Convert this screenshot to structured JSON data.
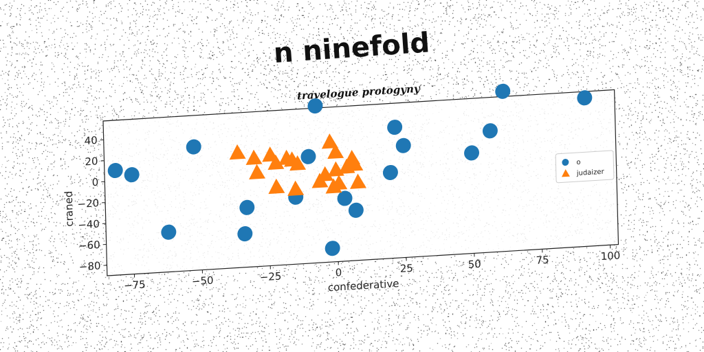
{
  "title": "n ninefold",
  "chart_data": {
    "type": "scatter",
    "subtitle": "travelogue protogyny",
    "xlabel": "confederative",
    "ylabel": "craned",
    "xlim": [
      -85,
      103
    ],
    "ylim": [
      -90,
      58
    ],
    "xticks": [
      -75,
      -50,
      -25,
      0,
      25,
      50,
      75,
      100
    ],
    "yticks": [
      -80,
      -60,
      -40,
      -20,
      0,
      20,
      40
    ],
    "grid": false,
    "legend_position": "right",
    "series": [
      {
        "name": "o",
        "marker": "circle",
        "color": "#1f77b4",
        "points": [
          {
            "x": -81,
            "y": 10
          },
          {
            "x": -75,
            "y": 5
          },
          {
            "x": -62,
            "y": -52
          },
          {
            "x": -52,
            "y": 28
          },
          {
            "x": -34,
            "y": -58
          },
          {
            "x": -33,
            "y": -33
          },
          {
            "x": -15,
            "y": -26
          },
          {
            "x": -10,
            "y": 12
          },
          {
            "x": -7,
            "y": 60
          },
          {
            "x": -2,
            "y": -77
          },
          {
            "x": 3,
            "y": -30
          },
          {
            "x": 7,
            "y": -42
          },
          {
            "x": 20,
            "y": -8
          },
          {
            "x": 22,
            "y": 35
          },
          {
            "x": 25,
            "y": 17
          },
          {
            "x": 50,
            "y": 6
          },
          {
            "x": 57,
            "y": 26
          },
          {
            "x": 62,
            "y": 63
          },
          {
            "x": 92,
            "y": 52
          }
        ]
      },
      {
        "name": "judaizer",
        "marker": "triangle",
        "color": "#ff7f0e",
        "points": [
          {
            "x": -36,
            "y": 20
          },
          {
            "x": -30,
            "y": 14
          },
          {
            "x": -29,
            "y": 0
          },
          {
            "x": -24,
            "y": 16
          },
          {
            "x": -22,
            "y": 8
          },
          {
            "x": -22,
            "y": -15
          },
          {
            "x": -18,
            "y": 12
          },
          {
            "x": -16,
            "y": 10
          },
          {
            "x": -15,
            "y": -18
          },
          {
            "x": -14,
            "y": 6
          },
          {
            "x": -6,
            "y": -12
          },
          {
            "x": -4,
            "y": -6
          },
          {
            "x": -2,
            "y": 25
          },
          {
            "x": -1,
            "y": -18
          },
          {
            "x": 0,
            "y": 15
          },
          {
            "x": 0,
            "y": -2
          },
          {
            "x": 1,
            "y": -15
          },
          {
            "x": 4,
            "y": 0
          },
          {
            "x": 6,
            "y": 8
          },
          {
            "x": 7,
            "y": 2
          },
          {
            "x": 8,
            "y": -15
          }
        ]
      }
    ]
  }
}
